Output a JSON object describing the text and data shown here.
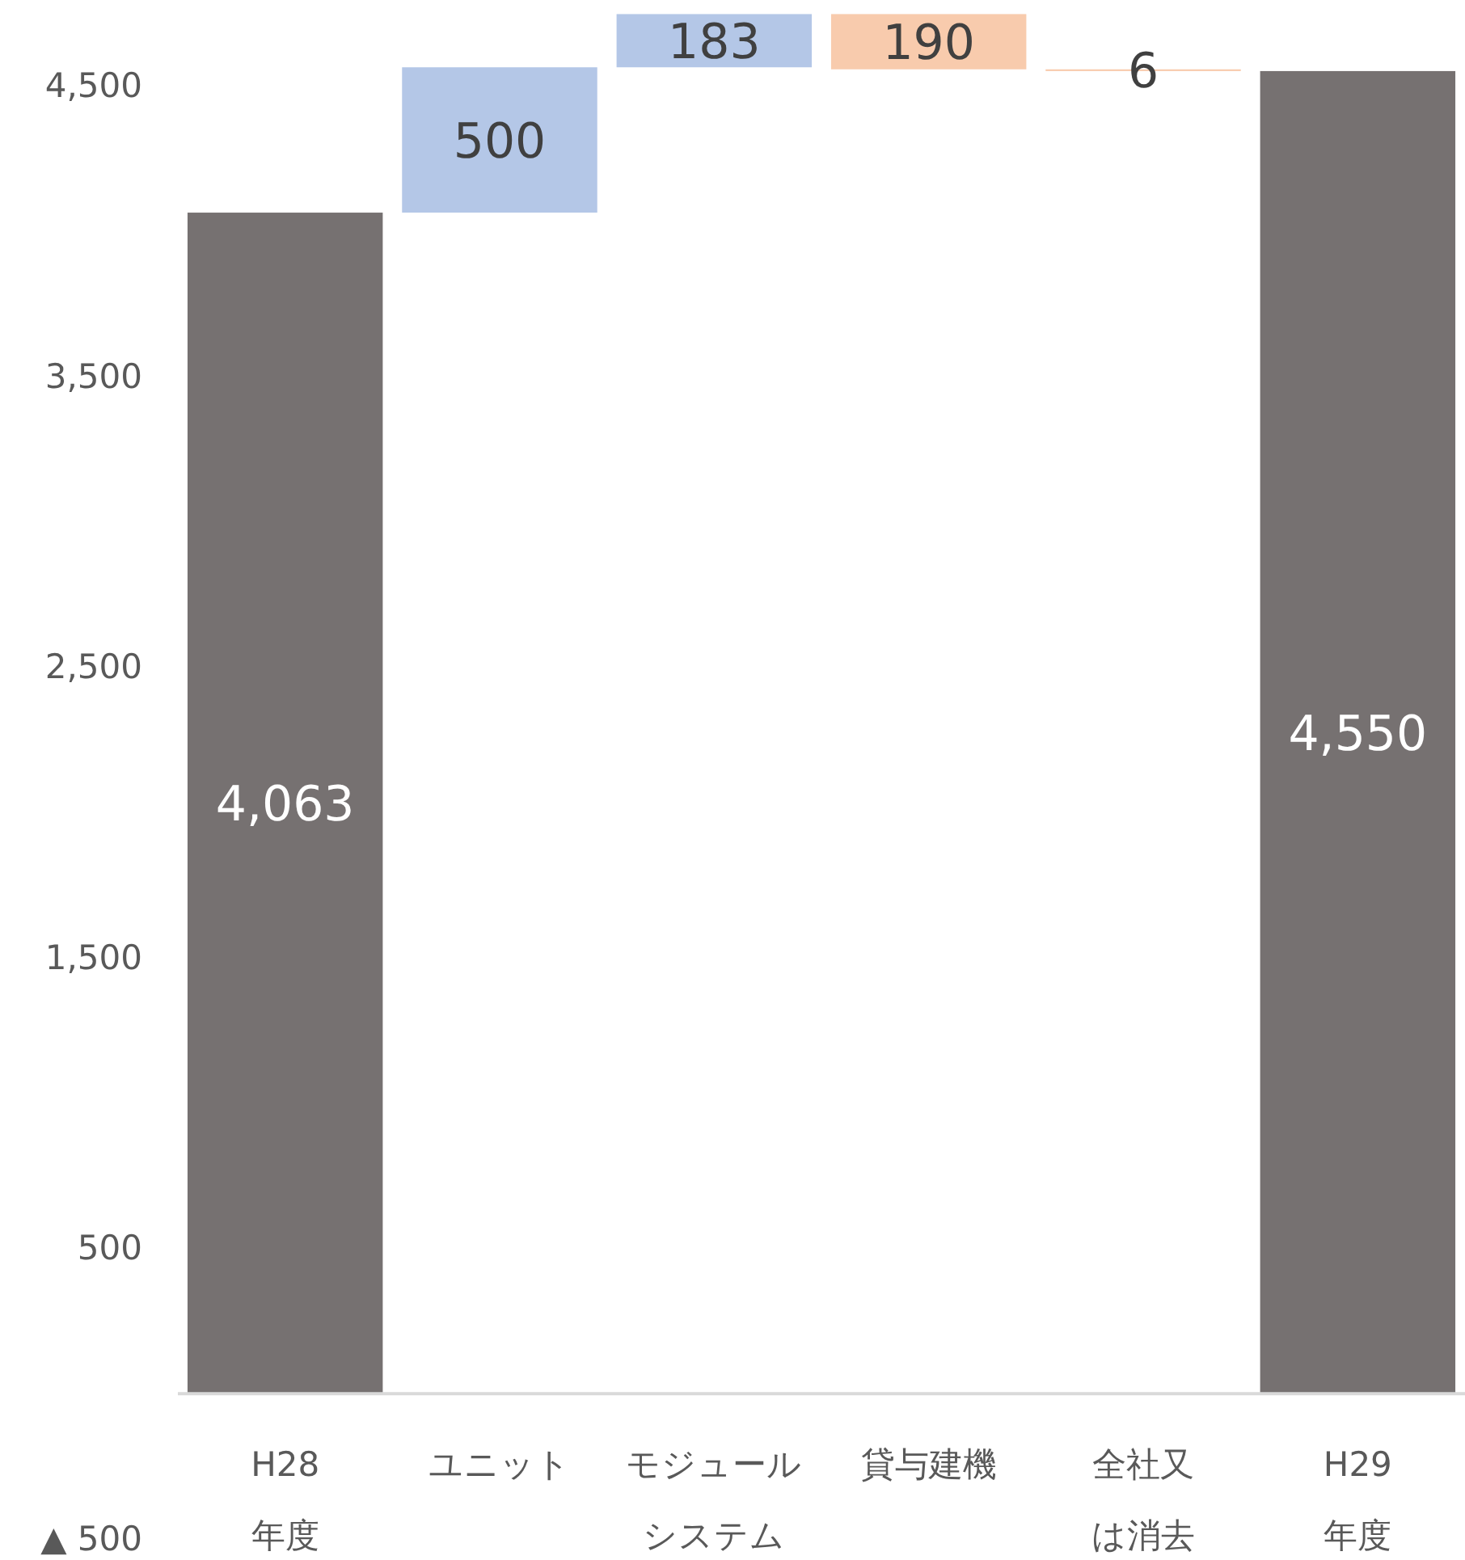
{
  "chart_data": {
    "type": "bar",
    "categories": [
      "H28年度",
      "ユニット",
      "モジュールシステム",
      "貸与建機",
      "全社又は消去",
      "H29年度"
    ],
    "values": [
      4063,
      500,
      183,
      -190,
      -6,
      4550
    ],
    "base": [
      0,
      4063,
      4563,
      4746,
      4556,
      0
    ],
    "colors": [
      "#767171",
      "#b4c7e7",
      "#b4c7e7",
      "#f8cbad",
      "#f8cbad",
      "#767171"
    ],
    "value_labels": [
      "4,063",
      "500",
      "183",
      "190",
      "6",
      "4,550"
    ],
    "ylim": [
      -500,
      4750
    ],
    "yticks": [
      {
        "value": -500,
        "label": "▲ 500"
      },
      {
        "value": 500,
        "label": "500"
      },
      {
        "value": 1500,
        "label": "1,500"
      },
      {
        "value": 2500,
        "label": "2,500"
      },
      {
        "value": 3500,
        "label": "3,500"
      },
      {
        "value": 4500,
        "label": "4,500"
      }
    ],
    "grid": false
  }
}
